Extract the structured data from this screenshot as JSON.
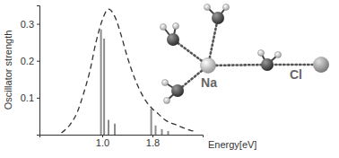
{
  "chart_data": {
    "type": "line",
    "x_label": "Energy[eV]",
    "y_label": "Oscillator strength",
    "xlim": [
      0,
      2.6
    ],
    "ylim": [
      0,
      0.35
    ],
    "xticks": [
      {
        "value": 1,
        "label": "1.0"
      },
      1.8
    ],
    "yticks": [
      0.1,
      0.2,
      0.3
    ],
    "series": [
      {
        "type": "stick",
        "color": "#8c8c8c",
        "x": [
          0.98,
          1.03,
          1.1,
          1.2,
          1.78,
          1.85,
          1.95,
          2.05
        ],
        "values": [
          0.285,
          0.26,
          0.04,
          0.03,
          0.07,
          0.025,
          0.015,
          0.01
        ]
      },
      {
        "type": "line",
        "line_style": "dashed",
        "color": "#333333",
        "x": [
          0.35,
          0.5,
          0.6,
          0.7,
          0.8,
          0.9,
          1.0,
          1.1,
          1.2,
          1.3,
          1.4,
          1.5,
          1.6,
          1.7,
          1.8,
          1.9,
          2.0,
          2.2,
          2.4,
          2.5
        ],
        "values": [
          0.005,
          0.03,
          0.06,
          0.11,
          0.17,
          0.25,
          0.31,
          0.34,
          0.32,
          0.27,
          0.21,
          0.16,
          0.12,
          0.09,
          0.07,
          0.055,
          0.04,
          0.025,
          0.012,
          0.008
        ]
      }
    ],
    "annotations": [
      {
        "text": "Na"
      },
      {
        "text": "Cl"
      }
    ]
  }
}
